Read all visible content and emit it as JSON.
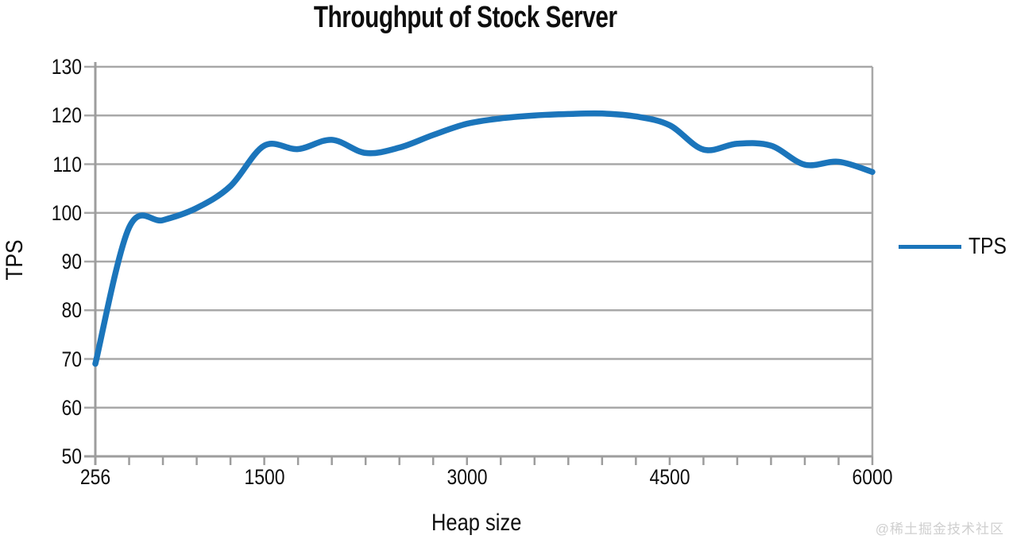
{
  "watermark": "@稀土掘金技术社区",
  "chart_data": {
    "type": "line",
    "title": "Throughput of Stock Server",
    "xlabel": "Heap size",
    "ylabel": "TPS",
    "legend": [
      "TPS"
    ],
    "legend_position": "right-middle",
    "x": [
      256,
      500,
      750,
      1000,
      1250,
      1500,
      1750,
      2000,
      2250,
      2500,
      2750,
      3000,
      3250,
      3500,
      3750,
      4000,
      4250,
      4500,
      4750,
      5000,
      5250,
      5500,
      5750,
      6000
    ],
    "series": [
      {
        "name": "TPS",
        "values": [
          69,
          97,
          98.5,
          101,
          105.5,
          113.8,
          113.1,
          115,
          112.3,
          113.4,
          116,
          118.3,
          119.4,
          120,
          120.3,
          120.4,
          119.8,
          118,
          113,
          114.2,
          113.8,
          109.9,
          110.5,
          108.4
        ]
      }
    ],
    "ylim": [
      50,
      130
    ],
    "yticks": [
      130,
      120,
      110,
      100,
      90,
      80,
      70,
      60,
      50
    ],
    "xticks_shown": [
      "256",
      "1500",
      "3000",
      "4500",
      "6000"
    ],
    "xticks_shown_indices": [
      0,
      5,
      11,
      17,
      23
    ],
    "grid": true,
    "smooth": true,
    "colors": {
      "line": "#1b75bb",
      "grid": "#a8a8a8",
      "axis": "#9d9d9d",
      "text": "#0e0e0e",
      "watermark": "#cfcfcf"
    }
  }
}
